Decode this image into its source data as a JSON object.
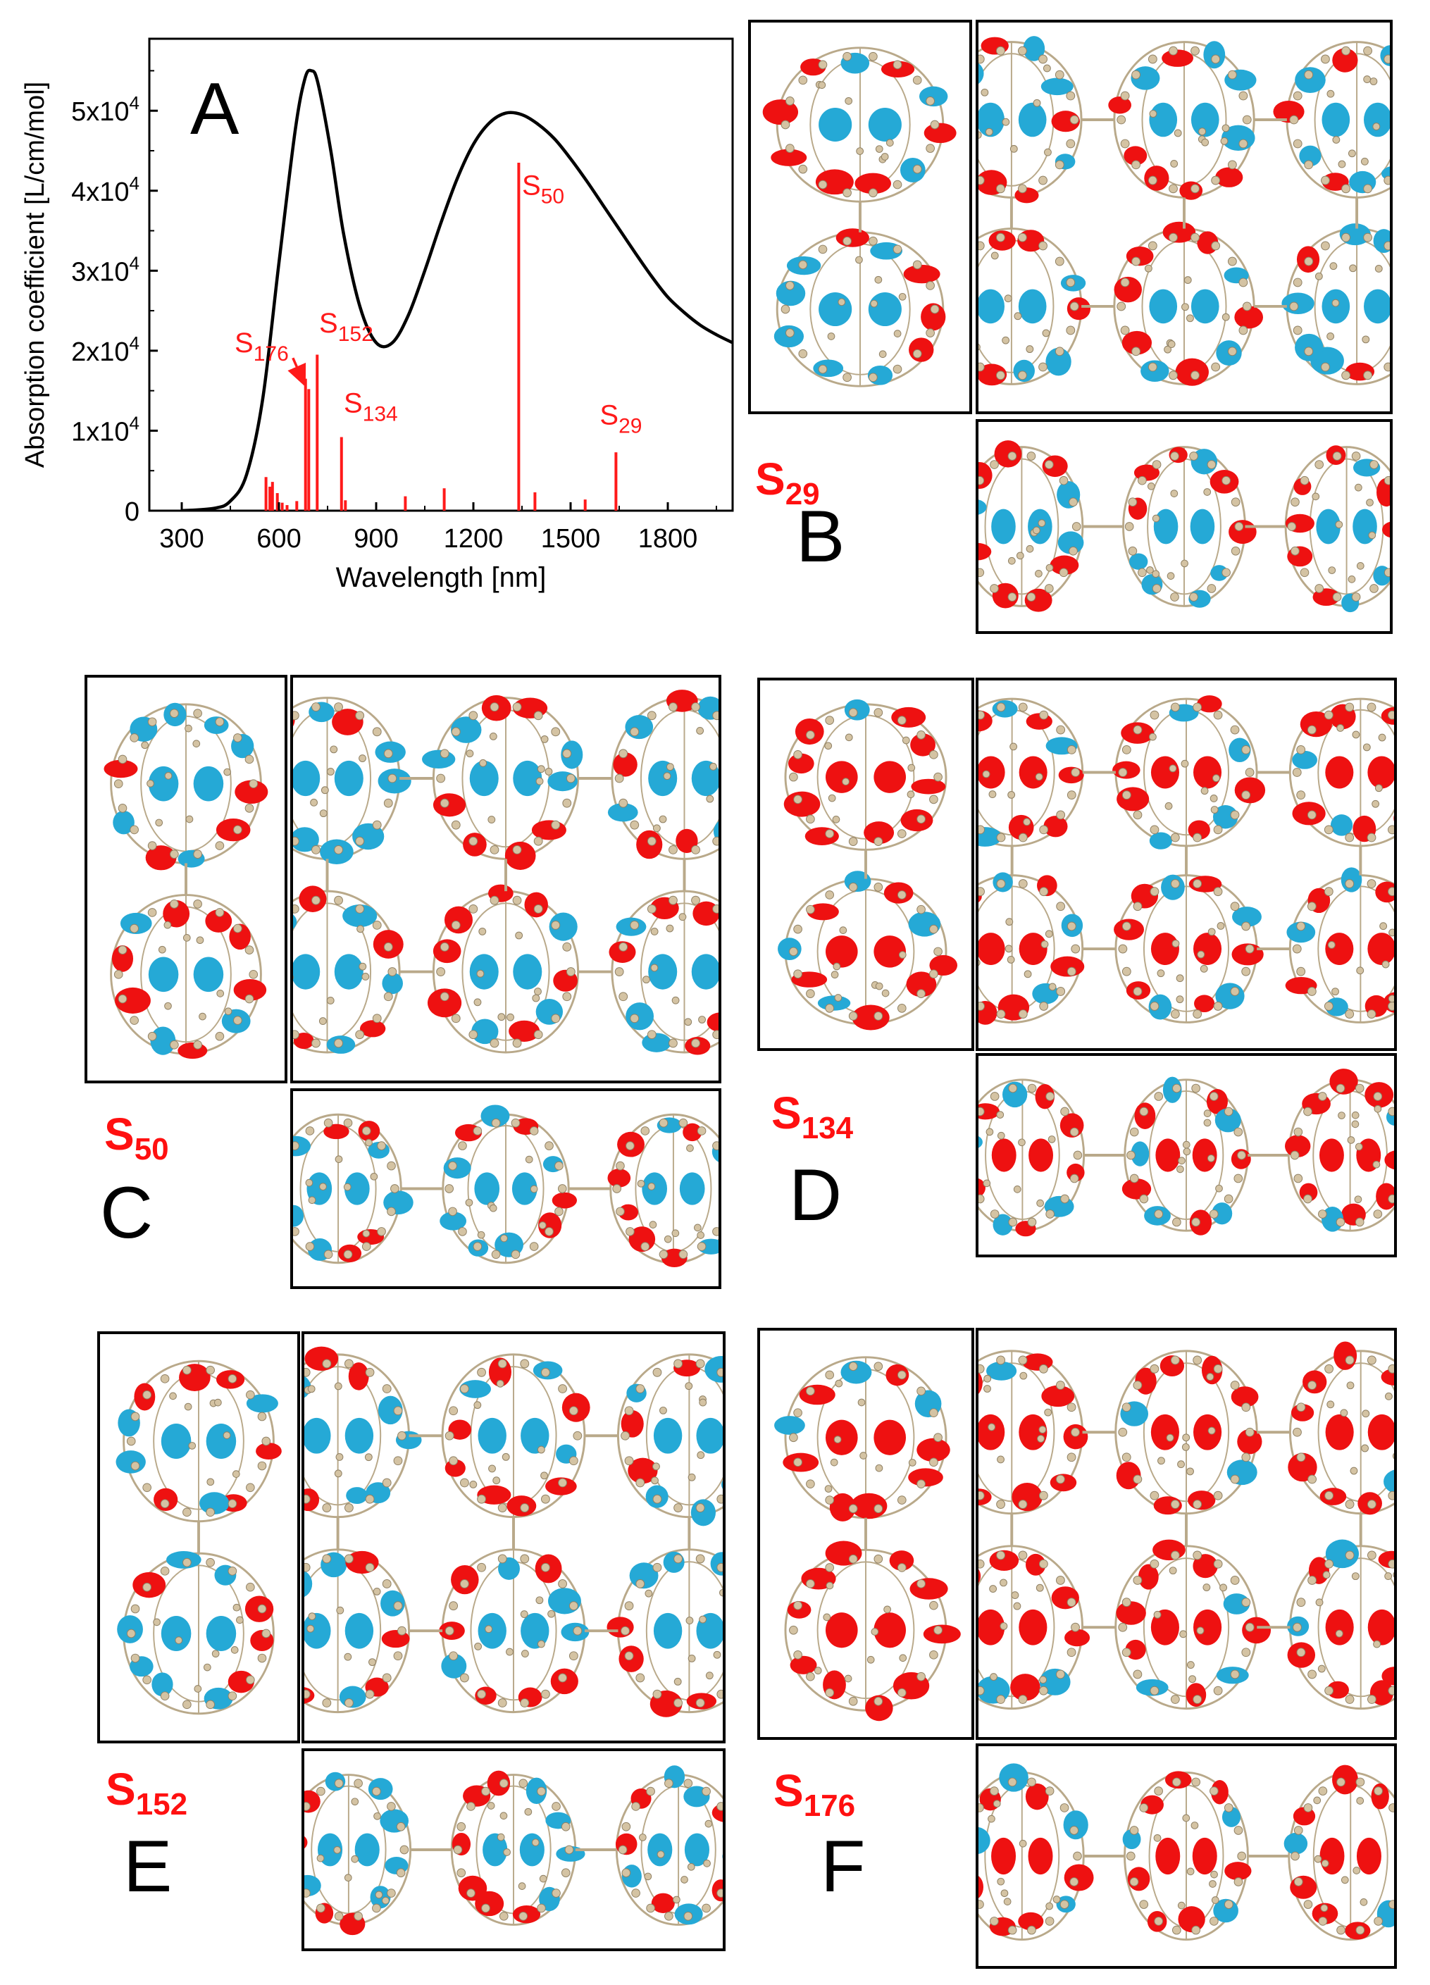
{
  "colors": {
    "spectrum_line": "#000000",
    "stick": "#ff1a1a",
    "state_label": "#ff1010",
    "density_red": "#ee1111",
    "density_blue": "#25a9d6",
    "atom": "#d4c3a3"
  },
  "chart_data": {
    "type": "line",
    "panel_letter": "A",
    "xlabel": "Wavelength [nm]",
    "ylabel": "Absorption coefficient [L/cm/mol]",
    "xlim": [
      200,
      2000
    ],
    "ylim": [
      0,
      59000
    ],
    "x_ticks": [
      300,
      600,
      900,
      1200,
      1500,
      1800
    ],
    "y_ticks": [
      {
        "value": 0,
        "label": "0",
        "base": "0",
        "exp": ""
      },
      {
        "value": 10000,
        "label": "1x10^4",
        "base": "1x10",
        "exp": "4"
      },
      {
        "value": 20000,
        "label": "2x10^4",
        "base": "2x10",
        "exp": "4"
      },
      {
        "value": 30000,
        "label": "3x10^4",
        "base": "3x10",
        "exp": "4"
      },
      {
        "value": 40000,
        "label": "4x10^4",
        "base": "4x10",
        "exp": "4"
      },
      {
        "value": 50000,
        "label": "5x10^4",
        "base": "5x10",
        "exp": "4"
      }
    ],
    "series": [
      {
        "name": "spectrum",
        "x": [
          300,
          400,
          450,
          500,
          550,
          600,
          650,
          680,
          700,
          720,
          760,
          800,
          850,
          900,
          950,
          1000,
          1050,
          1100,
          1150,
          1200,
          1250,
          1300,
          1350,
          1400,
          1450,
          1500,
          1550,
          1600,
          1650,
          1700,
          1750,
          1800,
          1850,
          1900,
          1950,
          2000
        ],
        "y": [
          0,
          300,
          1200,
          4500,
          14000,
          31000,
          47500,
          54000,
          55000,
          53500,
          45000,
          34500,
          25500,
          21000,
          21000,
          24500,
          30000,
          36000,
          41500,
          45800,
          48500,
          49700,
          49500,
          48300,
          46500,
          44000,
          41200,
          38200,
          35200,
          32200,
          29300,
          26700,
          24800,
          23200,
          22000,
          21000
        ]
      }
    ],
    "sticks": [
      {
        "x": 560,
        "y": 4200
      },
      {
        "x": 572,
        "y": 3000
      },
      {
        "x": 580,
        "y": 3600
      },
      {
        "x": 595,
        "y": 2200
      },
      {
        "x": 610,
        "y": 1000
      },
      {
        "x": 625,
        "y": 700
      },
      {
        "x": 655,
        "y": 1200
      },
      {
        "x": 682,
        "y": 16500
      },
      {
        "x": 692,
        "y": 15200
      },
      {
        "x": 718,
        "y": 19500
      },
      {
        "x": 793,
        "y": 9200
      },
      {
        "x": 805,
        "y": 1300
      },
      {
        "x": 990,
        "y": 1800
      },
      {
        "x": 1110,
        "y": 2800
      },
      {
        "x": 1340,
        "y": 43500
      },
      {
        "x": 1390,
        "y": 2300
      },
      {
        "x": 1545,
        "y": 1400
      },
      {
        "x": 1640,
        "y": 7300
      }
    ],
    "state_annotations": [
      {
        "base": "S",
        "sub": "176",
        "x": 630,
        "y": 19800,
        "arrow_to": [
          688,
          15400
        ]
      },
      {
        "base": "S",
        "sub": "152",
        "x": 724,
        "y": 22300
      },
      {
        "base": "S",
        "sub": "134",
        "x": 800,
        "y": 12300
      },
      {
        "base": "S",
        "sub": "50",
        "x": 1350,
        "y": 39500
      },
      {
        "base": "S",
        "sub": "29",
        "x": 1590,
        "y": 10800
      }
    ]
  },
  "panels": [
    {
      "letter": "B",
      "state": {
        "base": "S",
        "sub": "29"
      },
      "pattern": "b"
    },
    {
      "letter": "C",
      "state": {
        "base": "S",
        "sub": "50"
      },
      "pattern": "c"
    },
    {
      "letter": "D",
      "state": {
        "base": "S",
        "sub": "134"
      },
      "pattern": "d"
    },
    {
      "letter": "E",
      "state": {
        "base": "S",
        "sub": "152"
      },
      "pattern": "e"
    },
    {
      "letter": "F",
      "state": {
        "base": "S",
        "sub": "176"
      },
      "pattern": "f"
    }
  ]
}
